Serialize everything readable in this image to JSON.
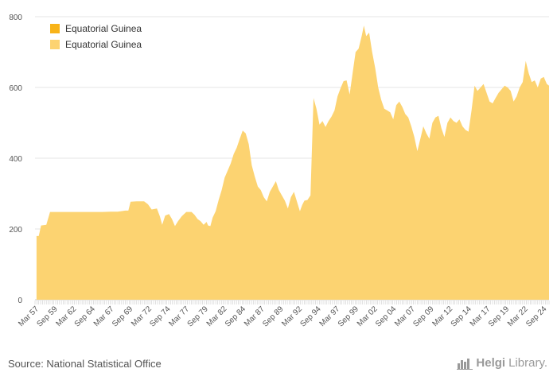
{
  "chart_data": {
    "type": "area",
    "title": "",
    "xlabel": "",
    "ylabel": "",
    "ylim": [
      0,
      800
    ],
    "yticks": [
      0,
      200,
      400,
      600,
      800
    ],
    "x_start_year": 1957,
    "x_end_year": 2025.3,
    "xtick_labels": [
      "Mar 57",
      "Sep 59",
      "Mar 62",
      "Sep 64",
      "Mar 67",
      "Sep 69",
      "Mar 72",
      "Sep 74",
      "Mar 77",
      "Sep 79",
      "Mar 82",
      "Sep 84",
      "Mar 87",
      "Sep 89",
      "Mar 92",
      "Sep 94",
      "Mar 97",
      "Sep 99",
      "Mar 02",
      "Sep 04",
      "Mar 07",
      "Sep 09",
      "Mar 12",
      "Sep 14",
      "Mar 17",
      "Sep 19",
      "Mar 22",
      "Sep 24"
    ],
    "legend": [
      "Equatorial Guinea",
      "Equatorial Guinea"
    ],
    "series": [
      {
        "name": "Equatorial Guinea",
        "color": "#fcd371",
        "points": [
          [
            1957.2,
            180
          ],
          [
            1957.5,
            180
          ],
          [
            1957.8,
            210
          ],
          [
            1958.5,
            212
          ],
          [
            1959.0,
            248
          ],
          [
            1960,
            248
          ],
          [
            1962,
            248
          ],
          [
            1964,
            248
          ],
          [
            1966,
            248
          ],
          [
            1967,
            249
          ],
          [
            1968,
            249
          ],
          [
            1969,
            252
          ],
          [
            1969.4,
            252
          ],
          [
            1969.7,
            277
          ],
          [
            1970.5,
            278
          ],
          [
            1971.5,
            278
          ],
          [
            1972.0,
            270
          ],
          [
            1972.5,
            255
          ],
          [
            1973.2,
            258
          ],
          [
            1973.6,
            235
          ],
          [
            1973.9,
            212
          ],
          [
            1974.3,
            238
          ],
          [
            1974.8,
            242
          ],
          [
            1975.2,
            228
          ],
          [
            1975.6,
            208
          ],
          [
            1976.0,
            222
          ],
          [
            1976.5,
            236
          ],
          [
            1977.1,
            248
          ],
          [
            1977.8,
            248
          ],
          [
            1978.2,
            240
          ],
          [
            1978.6,
            228
          ],
          [
            1979.0,
            222
          ],
          [
            1979.4,
            212
          ],
          [
            1979.8,
            220
          ],
          [
            1980.0,
            210
          ],
          [
            1980.3,
            208
          ],
          [
            1980.6,
            232
          ],
          [
            1981.0,
            250
          ],
          [
            1981.4,
            282
          ],
          [
            1981.8,
            310
          ],
          [
            1982.2,
            345
          ],
          [
            1982.6,
            365
          ],
          [
            1983.0,
            385
          ],
          [
            1983.4,
            412
          ],
          [
            1983.8,
            430
          ],
          [
            1984.2,
            455
          ],
          [
            1984.6,
            478
          ],
          [
            1985.0,
            470
          ],
          [
            1985.4,
            440
          ],
          [
            1985.8,
            380
          ],
          [
            1986.2,
            348
          ],
          [
            1986.6,
            320
          ],
          [
            1987.0,
            310
          ],
          [
            1987.4,
            290
          ],
          [
            1987.8,
            278
          ],
          [
            1988.2,
            305
          ],
          [
            1988.6,
            320
          ],
          [
            1989.0,
            335
          ],
          [
            1989.4,
            310
          ],
          [
            1989.8,
            295
          ],
          [
            1990.2,
            280
          ],
          [
            1990.6,
            258
          ],
          [
            1991.0,
            290
          ],
          [
            1991.4,
            305
          ],
          [
            1991.8,
            278
          ],
          [
            1992.2,
            250
          ],
          [
            1992.5,
            268
          ],
          [
            1992.8,
            280
          ],
          [
            1993.2,
            282
          ],
          [
            1993.6,
            295
          ],
          [
            1994.0,
            570
          ],
          [
            1994.4,
            540
          ],
          [
            1994.8,
            495
          ],
          [
            1995.2,
            505
          ],
          [
            1995.6,
            488
          ],
          [
            1996.0,
            505
          ],
          [
            1996.4,
            518
          ],
          [
            1996.8,
            535
          ],
          [
            1997.2,
            575
          ],
          [
            1997.6,
            598
          ],
          [
            1998.0,
            618
          ],
          [
            1998.4,
            620
          ],
          [
            1998.8,
            580
          ],
          [
            1999.2,
            640
          ],
          [
            1999.6,
            700
          ],
          [
            2000.0,
            710
          ],
          [
            2000.4,
            745
          ],
          [
            2000.7,
            775
          ],
          [
            2001.0,
            745
          ],
          [
            2001.4,
            755
          ],
          [
            2001.8,
            700
          ],
          [
            2002.2,
            655
          ],
          [
            2002.6,
            600
          ],
          [
            2003.0,
            565
          ],
          [
            2003.4,
            540
          ],
          [
            2003.8,
            535
          ],
          [
            2004.2,
            530
          ],
          [
            2004.6,
            510
          ],
          [
            2005.0,
            550
          ],
          [
            2005.4,
            560
          ],
          [
            2005.8,
            545
          ],
          [
            2006.2,
            525
          ],
          [
            2006.6,
            515
          ],
          [
            2007.0,
            490
          ],
          [
            2007.4,
            460
          ],
          [
            2007.8,
            420
          ],
          [
            2008.2,
            455
          ],
          [
            2008.6,
            490
          ],
          [
            2009.0,
            470
          ],
          [
            2009.4,
            455
          ],
          [
            2009.8,
            500
          ],
          [
            2010.2,
            515
          ],
          [
            2010.6,
            520
          ],
          [
            2011.0,
            485
          ],
          [
            2011.4,
            460
          ],
          [
            2011.8,
            500
          ],
          [
            2012.2,
            515
          ],
          [
            2012.6,
            505
          ],
          [
            2013.0,
            500
          ],
          [
            2013.4,
            510
          ],
          [
            2013.8,
            490
          ],
          [
            2014.2,
            480
          ],
          [
            2014.6,
            475
          ],
          [
            2015.0,
            535
          ],
          [
            2015.4,
            605
          ],
          [
            2015.8,
            590
          ],
          [
            2016.2,
            600
          ],
          [
            2016.6,
            610
          ],
          [
            2017.0,
            585
          ],
          [
            2017.4,
            560
          ],
          [
            2017.8,
            555
          ],
          [
            2018.2,
            570
          ],
          [
            2018.6,
            585
          ],
          [
            2019.0,
            595
          ],
          [
            2019.4,
            605
          ],
          [
            2019.8,
            600
          ],
          [
            2020.2,
            590
          ],
          [
            2020.6,
            560
          ],
          [
            2021.0,
            575
          ],
          [
            2021.4,
            600
          ],
          [
            2021.8,
            615
          ],
          [
            2022.2,
            675
          ],
          [
            2022.6,
            640
          ],
          [
            2023.0,
            615
          ],
          [
            2023.4,
            620
          ],
          [
            2023.8,
            600
          ],
          [
            2024.2,
            625
          ],
          [
            2024.6,
            630
          ],
          [
            2025.0,
            610
          ],
          [
            2025.3,
            605
          ]
        ]
      }
    ]
  },
  "legend_colors": [
    "#f8b318",
    "#fcd371"
  ],
  "footer": {
    "source": "Source: National Statistical Office",
    "brand_name": "Helgi",
    "brand_suffix": "Library."
  }
}
